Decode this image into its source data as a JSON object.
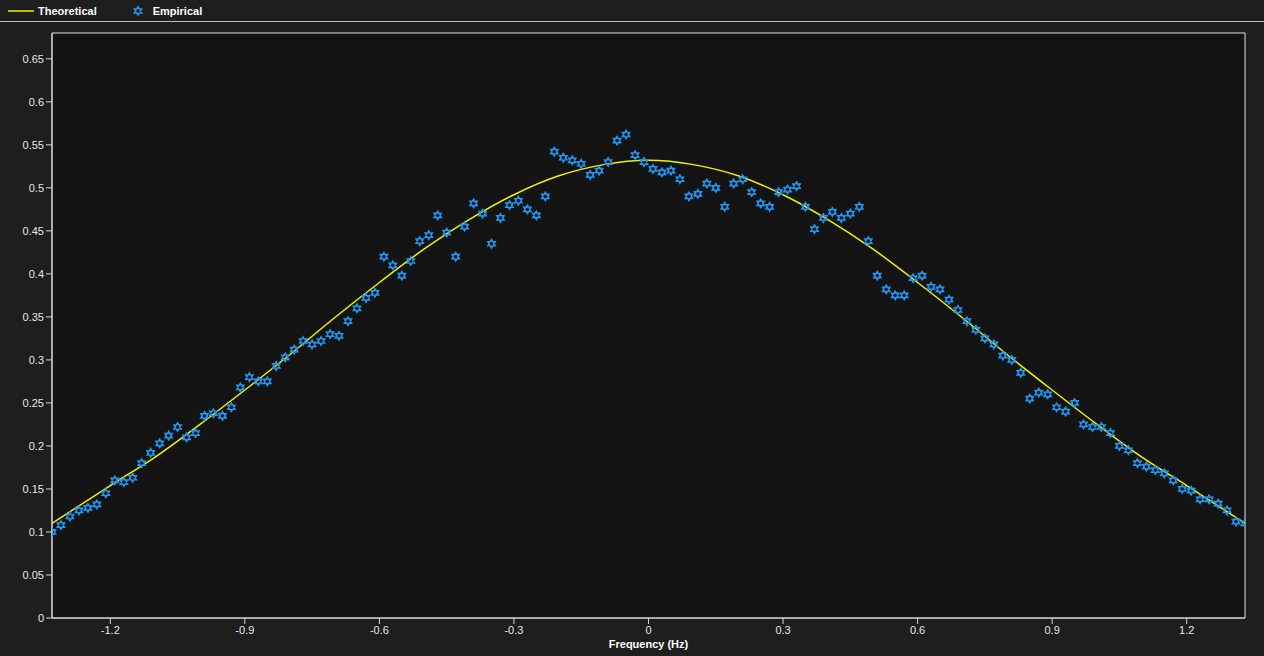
{
  "chart_data": {
    "type": "scatter",
    "x_label": "Frequency (Hz)",
    "xlim": [
      -1.33,
      1.33
    ],
    "xticks": [
      -1.2,
      -0.9,
      -0.6,
      -0.3,
      0,
      0.3,
      0.6,
      0.9,
      1.2
    ],
    "ylim": [
      0,
      0.68
    ],
    "yticks": [
      0,
      0.05,
      0.1,
      0.15,
      0.2,
      0.25,
      0.3,
      0.35,
      0.4,
      0.45,
      0.5,
      0.55,
      0.6,
      0.65
    ],
    "grid": true,
    "legend": "top-left",
    "series": [
      {
        "name": "Theoretical",
        "type": "line",
        "color": "#f2f200",
        "line_style": "solid",
        "x": [
          -1.33,
          -1.2,
          -1.1,
          -1.0,
          -0.9,
          -0.8,
          -0.7,
          -0.6,
          -0.5,
          -0.4,
          -0.3,
          -0.2,
          -0.1,
          0,
          0.1,
          0.2,
          0.3,
          0.4,
          0.5,
          0.6,
          0.7,
          0.8,
          0.9,
          1.0,
          1.1,
          1.2,
          1.33
        ],
        "values": [
          0.11,
          0.154,
          0.187,
          0.225,
          0.265,
          0.306,
          0.349,
          0.39,
          0.429,
          0.463,
          0.492,
          0.514,
          0.527,
          0.532,
          0.527,
          0.514,
          0.492,
          0.463,
          0.429,
          0.39,
          0.349,
          0.306,
          0.265,
          0.225,
          0.187,
          0.154,
          0.11
        ]
      },
      {
        "name": "Empirical",
        "type": "scatter",
        "color": "#2196f3",
        "marker": "hexagram",
        "x": [
          -1.33,
          -1.31,
          -1.29,
          -1.27,
          -1.25,
          -1.23,
          -1.21,
          -1.19,
          -1.17,
          -1.15,
          -1.13,
          -1.11,
          -1.09,
          -1.07,
          -1.05,
          -1.03,
          -1.01,
          -0.99,
          -0.97,
          -0.95,
          -0.93,
          -0.91,
          -0.89,
          -0.87,
          -0.85,
          -0.83,
          -0.81,
          -0.79,
          -0.77,
          -0.75,
          -0.73,
          -0.71,
          -0.69,
          -0.67,
          -0.65,
          -0.63,
          -0.61,
          -0.59,
          -0.57,
          -0.55,
          -0.53,
          -0.51,
          -0.49,
          -0.47,
          -0.45,
          -0.43,
          -0.41,
          -0.39,
          -0.37,
          -0.35,
          -0.33,
          -0.31,
          -0.29,
          -0.27,
          -0.25,
          -0.23,
          -0.21,
          -0.19,
          -0.17,
          -0.15,
          -0.13,
          -0.11,
          -0.09,
          -0.07,
          -0.05,
          -0.03,
          -0.01,
          0.01,
          0.03,
          0.05,
          0.07,
          0.09,
          0.11,
          0.13,
          0.15,
          0.17,
          0.19,
          0.21,
          0.23,
          0.25,
          0.27,
          0.29,
          0.31,
          0.33,
          0.35,
          0.37,
          0.39,
          0.41,
          0.43,
          0.45,
          0.47,
          0.49,
          0.51,
          0.53,
          0.55,
          0.57,
          0.59,
          0.61,
          0.63,
          0.65,
          0.67,
          0.69,
          0.71,
          0.73,
          0.75,
          0.77,
          0.79,
          0.81,
          0.83,
          0.85,
          0.87,
          0.89,
          0.91,
          0.93,
          0.95,
          0.97,
          0.99,
          1.01,
          1.03,
          1.05,
          1.07,
          1.09,
          1.11,
          1.13,
          1.15,
          1.17,
          1.19,
          1.21,
          1.23,
          1.25,
          1.27,
          1.29,
          1.31,
          1.33
        ],
        "values": [
          0.1,
          0.108,
          0.118,
          0.125,
          0.128,
          0.132,
          0.145,
          0.16,
          0.158,
          0.163,
          0.18,
          0.192,
          0.203,
          0.212,
          0.222,
          0.21,
          0.215,
          0.235,
          0.238,
          0.235,
          0.245,
          0.268,
          0.28,
          0.275,
          0.275,
          0.293,
          0.303,
          0.312,
          0.322,
          0.318,
          0.322,
          0.33,
          0.328,
          0.345,
          0.36,
          0.372,
          0.378,
          0.42,
          0.41,
          0.398,
          0.415,
          0.438,
          0.445,
          0.468,
          0.448,
          0.42,
          0.455,
          0.482,
          0.47,
          0.435,
          0.465,
          0.48,
          0.485,
          0.475,
          0.468,
          0.49,
          0.542,
          0.535,
          0.532,
          0.528,
          0.515,
          0.52,
          0.53,
          0.555,
          0.562,
          0.538,
          0.53,
          0.522,
          0.518,
          0.52,
          0.51,
          0.49,
          0.493,
          0.505,
          0.5,
          0.478,
          0.505,
          0.51,
          0.495,
          0.482,
          0.478,
          0.495,
          0.498,
          0.502,
          0.478,
          0.452,
          0.465,
          0.472,
          0.465,
          0.47,
          0.478,
          0.438,
          0.398,
          0.382,
          0.375,
          0.375,
          0.395,
          0.398,
          0.385,
          0.382,
          0.37,
          0.358,
          0.345,
          0.335,
          0.325,
          0.318,
          0.305,
          0.3,
          0.285,
          0.255,
          0.262,
          0.26,
          0.245,
          0.24,
          0.25,
          0.225,
          0.222,
          0.222,
          0.215,
          0.2,
          0.195,
          0.18,
          0.176,
          0.172,
          0.168,
          0.16,
          0.15,
          0.148,
          0.138,
          0.138,
          0.133,
          0.125,
          0.112,
          0.11
        ]
      }
    ]
  }
}
